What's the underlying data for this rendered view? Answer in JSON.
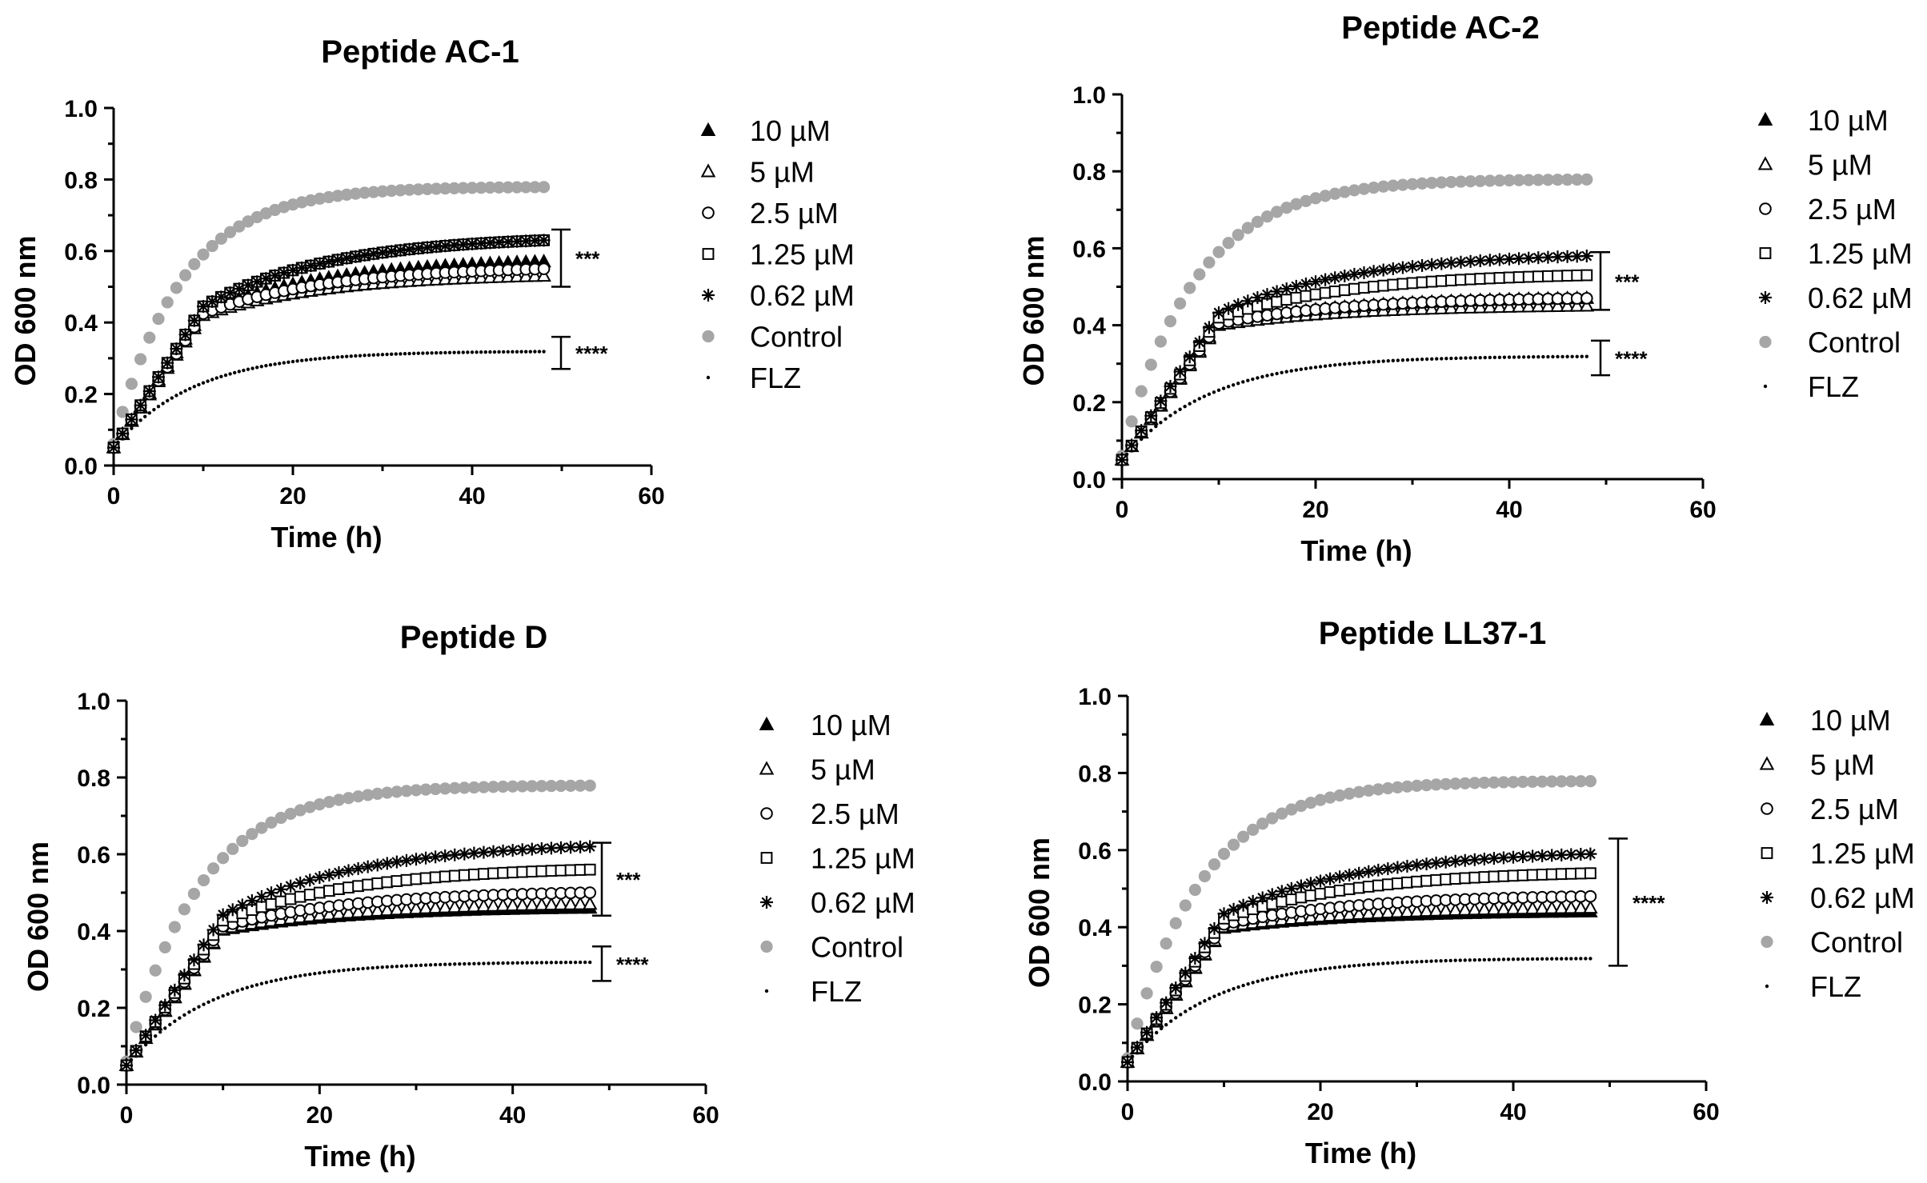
{
  "chart_data": [
    {
      "type": "scatter",
      "title": "Peptide AC-1",
      "xlabel": "Time (h)",
      "ylabel": "OD 600 nm",
      "xlim": [
        0,
        60
      ],
      "ylim": [
        0,
        1.0
      ],
      "xticks": [
        "0",
        "20",
        "40",
        "60"
      ],
      "yticks": [
        "0.0",
        "0.2",
        "0.4",
        "0.6",
        "0.8",
        "1.0"
      ],
      "series": [
        {
          "name": "10 µM",
          "marker": "triangle-filled",
          "plateau": 0.57
        },
        {
          "name": "5 µM",
          "marker": "triangle-open",
          "plateau": 0.53
        },
        {
          "name": "2.5 µM",
          "marker": "circle-open",
          "plateau": 0.55
        },
        {
          "name": "1.25 µM",
          "marker": "square-open",
          "plateau": 0.63
        },
        {
          "name": "0.62 µM",
          "marker": "star",
          "plateau": 0.63
        },
        {
          "name": "Control",
          "marker": "circle-gray",
          "plateau": 0.78
        },
        {
          "name": "FLZ",
          "marker": "dot",
          "plateau": 0.32
        }
      ],
      "significance": [
        {
          "label": "***",
          "low": 0.5,
          "high": 0.66
        },
        {
          "label": "****",
          "low": 0.27,
          "high": 0.36
        }
      ]
    },
    {
      "type": "scatter",
      "title": "Peptide AC-2",
      "xlabel": "Time (h)",
      "ylabel": "OD 600 nm",
      "xlim": [
        0,
        60
      ],
      "ylim": [
        0,
        1.0
      ],
      "xticks": [
        "0",
        "20",
        "40",
        "60"
      ],
      "yticks": [
        "0.0",
        "0.2",
        "0.4",
        "0.6",
        "0.8",
        "1.0"
      ],
      "series": [
        {
          "name": "10 µM",
          "marker": "triangle-filled",
          "plateau": 0.47
        },
        {
          "name": "5 µM",
          "marker": "triangle-open",
          "plateau": 0.45
        },
        {
          "name": "2.5 µM",
          "marker": "circle-open",
          "plateau": 0.47
        },
        {
          "name": "1.25 µM",
          "marker": "square-open",
          "plateau": 0.53
        },
        {
          "name": "0.62 µM",
          "marker": "star",
          "plateau": 0.58
        },
        {
          "name": "Control",
          "marker": "circle-gray",
          "plateau": 0.78
        },
        {
          "name": "FLZ",
          "marker": "dot",
          "plateau": 0.32
        }
      ],
      "significance": [
        {
          "label": "***",
          "low": 0.44,
          "high": 0.59
        },
        {
          "label": "****",
          "low": 0.27,
          "high": 0.36
        }
      ]
    },
    {
      "type": "scatter",
      "title": "Peptide  D",
      "xlabel": "Time (h)",
      "ylabel": "OD 600 nm",
      "xlim": [
        0,
        60
      ],
      "ylim": [
        0,
        1.0
      ],
      "xticks": [
        "0",
        "20",
        "40",
        "60"
      ],
      "yticks": [
        "0.0",
        "0.2",
        "0.4",
        "0.6",
        "0.8",
        "1.0"
      ],
      "series": [
        {
          "name": "10 µM",
          "marker": "triangle-filled",
          "plateau": 0.46
        },
        {
          "name": "5 µM",
          "marker": "triangle-open",
          "plateau": 0.47
        },
        {
          "name": "2.5 µM",
          "marker": "circle-open",
          "plateau": 0.5
        },
        {
          "name": "1.25 µM",
          "marker": "square-open",
          "plateau": 0.56
        },
        {
          "name": "0.62 µM",
          "marker": "star",
          "plateau": 0.62
        },
        {
          "name": "Control",
          "marker": "circle-gray",
          "plateau": 0.78
        },
        {
          "name": "FLZ",
          "marker": "dot",
          "plateau": 0.32
        }
      ],
      "significance": [
        {
          "label": "***",
          "low": 0.44,
          "high": 0.63
        },
        {
          "label": "****",
          "low": 0.27,
          "high": 0.36
        }
      ]
    },
    {
      "type": "scatter",
      "title": "Peptide LL37-1",
      "xlabel": "Time (h)",
      "ylabel": "OD 600 nm",
      "xlim": [
        0,
        60
      ],
      "ylim": [
        0,
        1.0
      ],
      "xticks": [
        "0",
        "20",
        "40",
        "60"
      ],
      "yticks": [
        "0.0",
        "0.2",
        "0.4",
        "0.6",
        "0.8",
        "1.0"
      ],
      "series": [
        {
          "name": "10 µM",
          "marker": "triangle-filled",
          "plateau": 0.44
        },
        {
          "name": "5 µM",
          "marker": "triangle-open",
          "plateau": 0.45
        },
        {
          "name": "2.5 µM",
          "marker": "circle-open",
          "plateau": 0.48
        },
        {
          "name": "1.25 µM",
          "marker": "square-open",
          "plateau": 0.54
        },
        {
          "name": "0.62 µM",
          "marker": "star",
          "plateau": 0.59
        },
        {
          "name": "Control",
          "marker": "circle-gray",
          "plateau": 0.78
        },
        {
          "name": "FLZ",
          "marker": "dot",
          "plateau": 0.32
        }
      ],
      "significance": [
        {
          "label": "****",
          "low": 0.3,
          "high": 0.63
        }
      ]
    }
  ],
  "colors": {
    "control": "#a6a6a6",
    "ink": "#000000"
  }
}
